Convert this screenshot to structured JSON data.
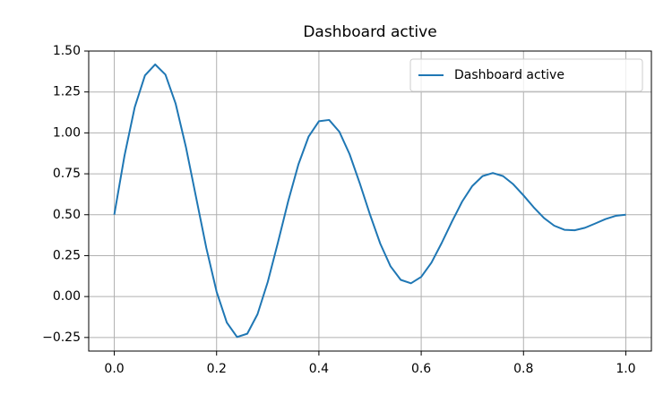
{
  "chart_data": {
    "type": "line",
    "title": "Dashboard active",
    "x": [
      0,
      0.02,
      0.04,
      0.06,
      0.08,
      0.1,
      0.12,
      0.14,
      0.16,
      0.18,
      0.2,
      0.22,
      0.24,
      0.26,
      0.28,
      0.3,
      0.32,
      0.34,
      0.36,
      0.38,
      0.4,
      0.42,
      0.44,
      0.46,
      0.48,
      0.5,
      0.52,
      0.54,
      0.56,
      0.58,
      0.6,
      0.62,
      0.64,
      0.66,
      0.68,
      0.7,
      0.72,
      0.74,
      0.76,
      0.78,
      0.8,
      0.82,
      0.84,
      0.86,
      0.88,
      0.9,
      0.92,
      0.94,
      0.96,
      0.98,
      1
    ],
    "series": [
      {
        "name": "Dashboard active",
        "color": "#1f77b4",
        "values": [
          0.5,
          0.861,
          1.157,
          1.351,
          1.418,
          1.356,
          1.178,
          0.914,
          0.605,
          0.296,
          0.03,
          -0.159,
          -0.247,
          -0.227,
          -0.108,
          0.089,
          0.331,
          0.583,
          0.808,
          0.978,
          1.071,
          1.079,
          1.007,
          0.87,
          0.691,
          0.5,
          0.323,
          0.185,
          0.102,
          0.081,
          0.12,
          0.207,
          0.327,
          0.457,
          0.58,
          0.676,
          0.736,
          0.755,
          0.736,
          0.686,
          0.618,
          0.545,
          0.48,
          0.433,
          0.408,
          0.405,
          0.42,
          0.446,
          0.473,
          0.493,
          0.5
        ]
      }
    ],
    "xlim": [
      -0.05,
      1.05
    ],
    "ylim": [
      -0.333,
      1.5
    ],
    "xticks": [
      {
        "value": 0,
        "label": "0.0"
      },
      0.2,
      0.4,
      0.6,
      0.8,
      {
        "value": 1,
        "label": "1.0"
      }
    ],
    "yticks": [
      {
        "value": -0.25,
        "label": "−0.25"
      },
      {
        "value": 0,
        "label": "0.00"
      },
      0.25,
      {
        "value": 0.5,
        "label": "0.50"
      },
      0.75,
      {
        "value": 1,
        "label": "1.00"
      },
      1.25,
      {
        "value": 1.5,
        "label": "1.50"
      }
    ],
    "grid": true,
    "legend": "upper right"
  }
}
